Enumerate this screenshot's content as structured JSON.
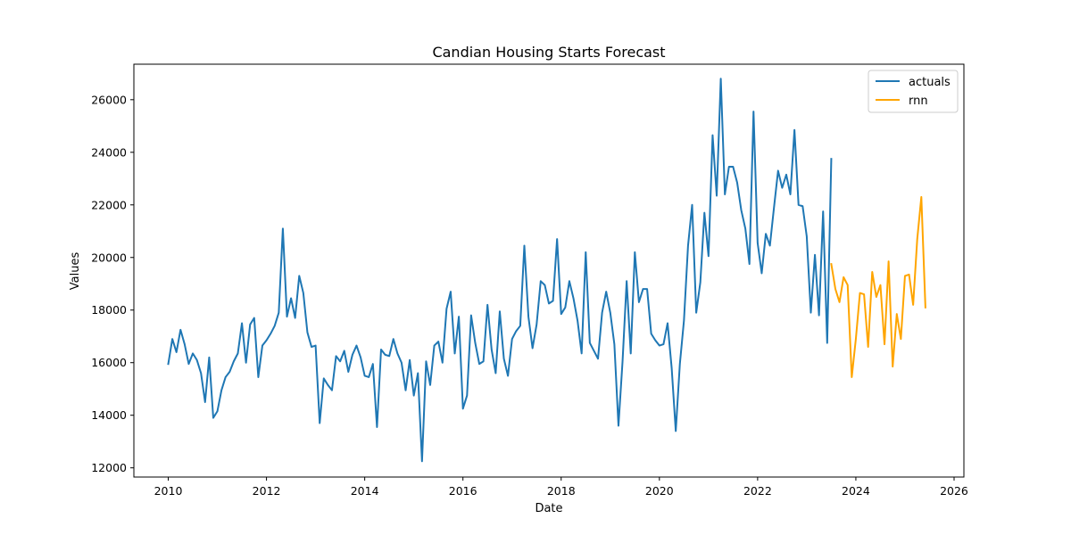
{
  "chart_data": {
    "type": "line",
    "title": "Candian Housing Starts Forecast",
    "xlabel": "Date",
    "ylabel": "Values",
    "xlim": [
      2009.3,
      2026.2
    ],
    "ylim": [
      11650,
      27350
    ],
    "xticks": [
      2010,
      2012,
      2014,
      2016,
      2018,
      2020,
      2022,
      2024,
      2026
    ],
    "yticks": [
      12000,
      14000,
      16000,
      18000,
      20000,
      22000,
      24000,
      26000
    ],
    "grid": false,
    "legend_position": "top-right",
    "series": [
      {
        "name": "actuals",
        "color": "#1f77b4",
        "x_start": 2010.0,
        "x_step": 0.0833333,
        "values": [
          15950,
          16900,
          16400,
          17250,
          16700,
          15950,
          16350,
          16100,
          15600,
          14500,
          16200,
          13900,
          14150,
          14950,
          15450,
          15650,
          16050,
          16350,
          17500,
          16000,
          17450,
          17700,
          15450,
          16650,
          16850,
          17100,
          17400,
          17900,
          21100,
          17750,
          18450,
          17700,
          19300,
          18650,
          17150,
          16600,
          16650,
          13700,
          15400,
          15150,
          14950,
          16250,
          16050,
          16450,
          15650,
          16300,
          16650,
          16200,
          15500,
          15450,
          15950,
          13550,
          16500,
          16300,
          16250,
          16900,
          16350,
          16000,
          14950,
          16100,
          14750,
          15600,
          12250,
          16050,
          15150,
          16650,
          16800,
          16000,
          18050,
          18700,
          16350,
          17750,
          14250,
          14750,
          17800,
          16750,
          15950,
          16050,
          18200,
          16500,
          15600,
          17950,
          16150,
          15500,
          16900,
          17200,
          17400,
          20450,
          17750,
          16550,
          17450,
          19100,
          18950,
          18250,
          18350,
          20700,
          17850,
          18100,
          19100,
          18450,
          17600,
          16350,
          20200,
          16750,
          16450,
          16150,
          17900,
          18700,
          17900,
          16700,
          13600,
          16050,
          19100,
          16350,
          20200,
          18300,
          18800,
          18800,
          17100,
          16850,
          16650,
          16700,
          17500,
          15800,
          13400,
          15950,
          17600,
          20450,
          22000,
          17900,
          19050,
          21700,
          20050,
          24650,
          22350,
          26800,
          22400,
          23450,
          23450,
          22850,
          21800,
          21100,
          19750,
          25550,
          20550,
          19400,
          20900,
          20450,
          21900,
          23300,
          22650,
          23150,
          22400,
          24850,
          22000,
          21950,
          20800,
          17900,
          20100,
          17800,
          21750,
          16750,
          23750
        ]
      },
      {
        "name": "rnn",
        "color": "#ffa500",
        "x_start": 2023.5,
        "x_step": 0.0833333,
        "values": [
          19750,
          18800,
          18300,
          19250,
          18950,
          15450,
          16900,
          18650,
          18600,
          16600,
          19450,
          18500,
          18950,
          16700,
          19850,
          15850,
          17850,
          16900,
          19300,
          19350,
          18200,
          20700,
          22300,
          18100
        ]
      }
    ]
  }
}
